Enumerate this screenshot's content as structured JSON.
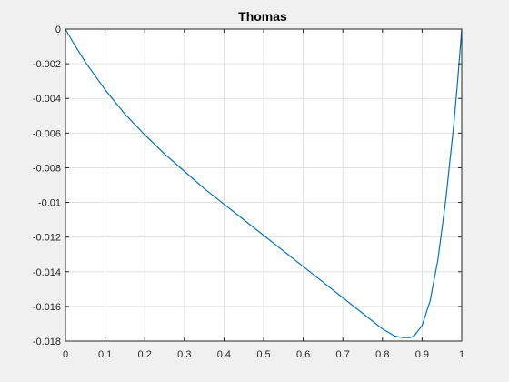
{
  "chart_data": {
    "type": "line",
    "title": "Thomas",
    "xlabel": "",
    "ylabel": "",
    "xlim": [
      0,
      1
    ],
    "ylim": [
      -0.018,
      0
    ],
    "grid": true,
    "x_ticks": [
      0,
      0.1,
      0.2,
      0.3,
      0.4,
      0.5,
      0.6,
      0.7,
      0.8,
      0.9,
      1
    ],
    "x_tick_labels": [
      "0",
      "0.1",
      "0.2",
      "0.3",
      "0.4",
      "0.5",
      "0.6",
      "0.7",
      "0.8",
      "0.9",
      "1"
    ],
    "y_ticks": [
      0,
      -0.002,
      -0.004,
      -0.006,
      -0.008,
      -0.01,
      -0.012,
      -0.014,
      -0.016,
      -0.018
    ],
    "y_tick_labels": [
      "0",
      "-0.002",
      "-0.004",
      "-0.006",
      "-0.008",
      "-0.01",
      "-0.012",
      "-0.014",
      "-0.016",
      "-0.018"
    ],
    "series": [
      {
        "color": "#0072bd",
        "x": [
          0,
          0.02,
          0.05,
          0.1,
          0.15,
          0.2,
          0.25,
          0.3,
          0.35,
          0.4,
          0.45,
          0.5,
          0.55,
          0.6,
          0.65,
          0.7,
          0.75,
          0.8,
          0.83,
          0.85,
          0.87,
          0.88,
          0.9,
          0.92,
          0.94,
          0.96,
          0.98,
          0.99,
          1.0
        ],
        "y": [
          0,
          -0.0008,
          -0.0019,
          -0.0035,
          -0.0049,
          -0.0061,
          -0.0072,
          -0.0082,
          -0.0092,
          -0.0101,
          -0.011,
          -0.0119,
          -0.0128,
          -0.0137,
          -0.0146,
          -0.0155,
          -0.0164,
          -0.0173,
          -0.0177,
          -0.0178,
          -0.0178,
          -0.0177,
          -0.0171,
          -0.0157,
          -0.0133,
          -0.0098,
          -0.0055,
          -0.0029,
          0
        ]
      }
    ]
  },
  "colors": {
    "figure_bg": "#f0f0f0",
    "axes_bg": "#ffffff",
    "grid": "#e0e0e0",
    "axis": "#262626",
    "line": "#0072bd"
  }
}
